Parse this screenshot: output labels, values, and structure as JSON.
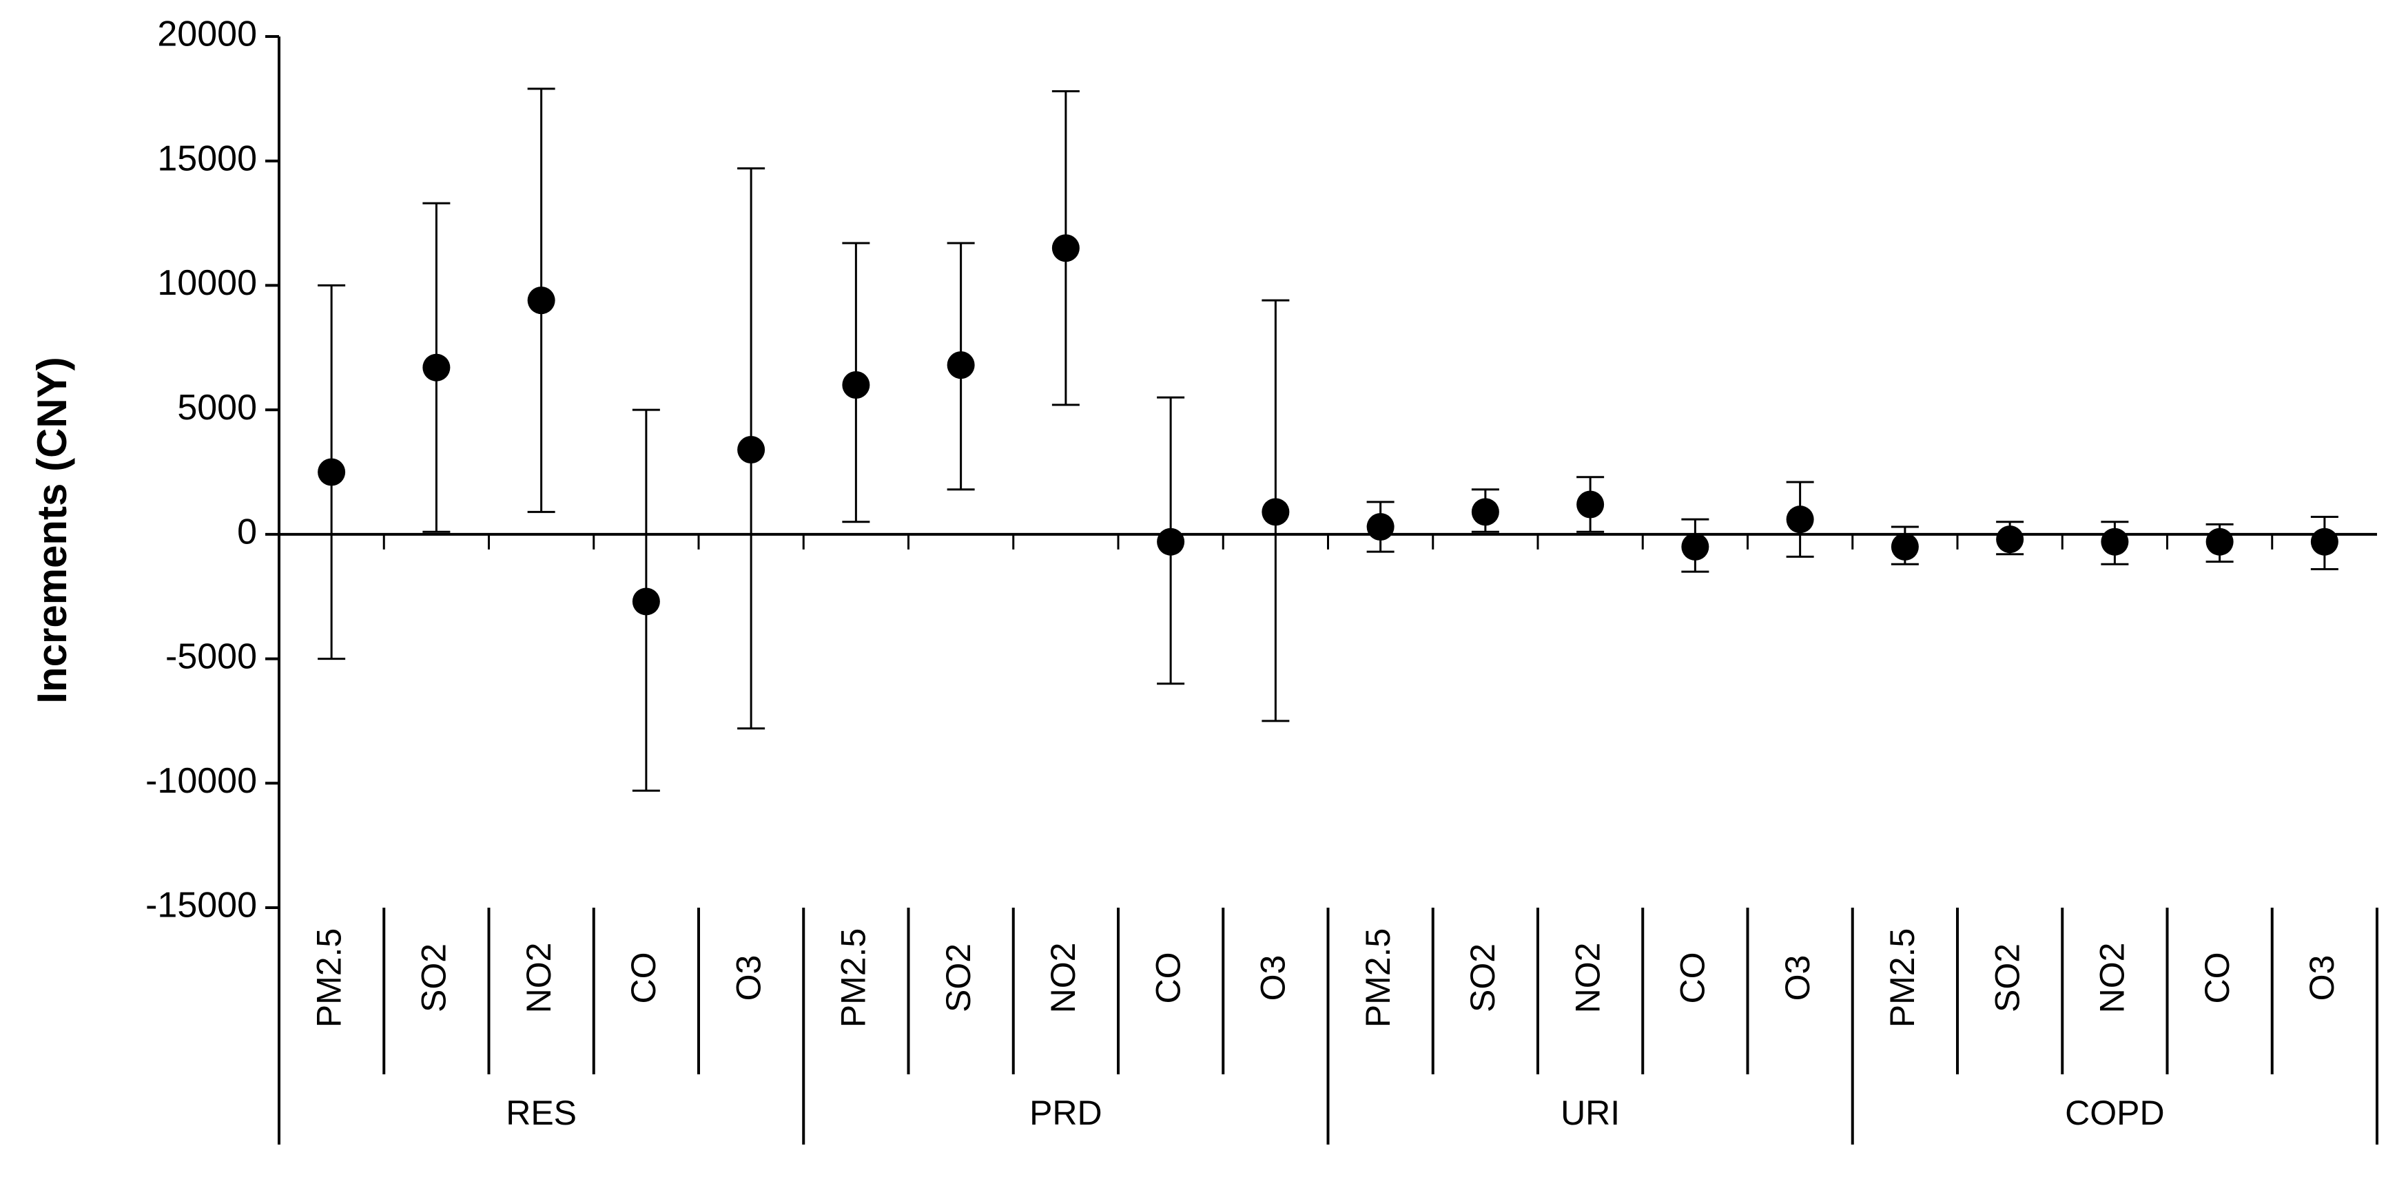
{
  "chart_data": {
    "type": "scatter",
    "ylabel": "Increments (CNY)",
    "ylim": [
      -15000,
      20000
    ],
    "yticks": [
      20000,
      15000,
      10000,
      5000,
      0,
      -5000,
      -10000,
      -15000
    ],
    "grid": false,
    "legend": "none",
    "marker_color": "#000000",
    "groups": [
      {
        "name": "RES",
        "points": [
          {
            "category": "PM2.5",
            "value": 2500,
            "lower": -5000,
            "upper": 10000
          },
          {
            "category": "SO2",
            "value": 6700,
            "lower": 100,
            "upper": 13300
          },
          {
            "category": "NO2",
            "value": 9400,
            "lower": 900,
            "upper": 17900
          },
          {
            "category": "CO",
            "value": -2700,
            "lower": -10300,
            "upper": 5000
          },
          {
            "category": "O3",
            "value": 3400,
            "lower": -7800,
            "upper": 14700
          }
        ]
      },
      {
        "name": "PRD",
        "points": [
          {
            "category": "PM2.5",
            "value": 6000,
            "lower": 500,
            "upper": 11700
          },
          {
            "category": "SO2",
            "value": 6800,
            "lower": 1800,
            "upper": 11700
          },
          {
            "category": "NO2",
            "value": 11500,
            "lower": 5200,
            "upper": 17800
          },
          {
            "category": "CO",
            "value": -300,
            "lower": -6000,
            "upper": 5500
          },
          {
            "category": "O3",
            "value": 900,
            "lower": -7500,
            "upper": 9400
          }
        ]
      },
      {
        "name": "URI",
        "points": [
          {
            "category": "PM2.5",
            "value": 300,
            "lower": -700,
            "upper": 1300
          },
          {
            "category": "SO2",
            "value": 900,
            "lower": 100,
            "upper": 1800
          },
          {
            "category": "NO2",
            "value": 1200,
            "lower": 100,
            "upper": 2300
          },
          {
            "category": "CO",
            "value": -500,
            "lower": -1500,
            "upper": 600
          },
          {
            "category": "O3",
            "value": 600,
            "lower": -900,
            "upper": 2100
          }
        ]
      },
      {
        "name": "COPD",
        "points": [
          {
            "category": "PM2.5",
            "value": -500,
            "lower": -1200,
            "upper": 300
          },
          {
            "category": "SO2",
            "value": -200,
            "lower": -800,
            "upper": 500
          },
          {
            "category": "NO2",
            "value": -300,
            "lower": -1200,
            "upper": 500
          },
          {
            "category": "CO",
            "value": -300,
            "lower": -1100,
            "upper": 400
          },
          {
            "category": "O3",
            "value": -300,
            "lower": -1400,
            "upper": 700
          }
        ]
      }
    ]
  }
}
